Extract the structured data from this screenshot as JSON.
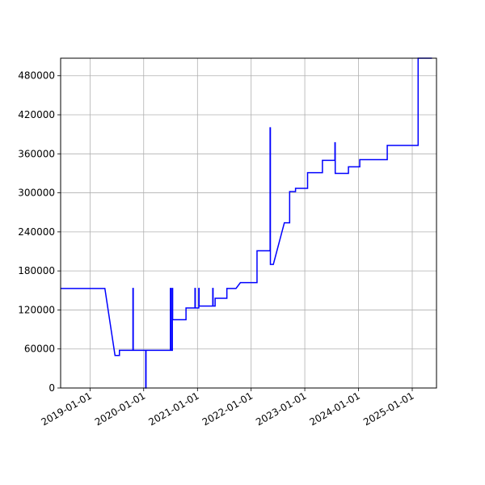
{
  "chart_data": {
    "type": "line",
    "title": "",
    "xlabel": "",
    "ylabel": "",
    "x_axis_kind": "date",
    "x_ticks": [
      "2019-01-01",
      "2020-01-01",
      "2021-01-01",
      "2022-01-01",
      "2023-01-01",
      "2024-01-01",
      "2025-01-01"
    ],
    "y_ticks": [
      "0",
      "60000",
      "120000",
      "180000",
      "240000",
      "300000",
      "360000",
      "420000",
      "480000"
    ],
    "xlim": [
      "2018-06-15",
      "2025-06-15"
    ],
    "ylim": [
      0,
      507000
    ],
    "grid": true,
    "legend": "none",
    "series": [
      {
        "color": "#0000ff",
        "x": [
          "2018-06-15",
          "2019-04-12",
          "2019-06-20",
          "2019-07-20",
          "2019-07-20",
          "2019-10-20",
          "2019-10-20",
          "2019-10-22",
          "2019-10-22",
          "2020-01-15",
          "2020-01-15",
          "2020-01-17",
          "2020-01-17",
          "2020-07-01",
          "2020-07-01",
          "2020-07-05",
          "2020-07-05",
          "2020-07-14",
          "2020-07-14",
          "2020-07-16",
          "2020-07-16",
          "2020-10-15",
          "2020-10-15",
          "2020-12-15",
          "2020-12-15",
          "2020-12-17",
          "2020-12-17",
          "2021-01-10",
          "2021-01-10",
          "2021-01-12",
          "2021-01-12",
          "2021-04-15",
          "2021-04-15",
          "2021-04-17",
          "2021-04-17",
          "2021-05-01",
          "2021-05-01",
          "2021-07-20",
          "2021-07-20",
          "2021-07-22",
          "2021-07-22",
          "2021-09-20",
          "2021-10-20",
          "2022-02-10",
          "2022-02-10",
          "2022-05-10",
          "2022-05-10",
          "2022-05-12",
          "2022-05-12",
          "2022-06-01",
          "2022-08-15",
          "2022-09-20",
          "2022-09-20",
          "2022-10-30",
          "2022-10-30",
          "2023-01-20",
          "2023-01-20",
          "2023-05-01",
          "2023-05-01",
          "2023-07-25",
          "2023-07-25",
          "2023-07-27",
          "2023-07-27",
          "2023-10-25",
          "2023-10-25",
          "2024-01-10",
          "2024-01-10",
          "2024-07-15",
          "2024-07-15",
          "2025-02-10",
          "2025-02-10",
          "2025-05-15"
        ],
        "y": [
          153000,
          153000,
          50000,
          50000,
          58000,
          58000,
          153000,
          153000,
          58000,
          58000,
          0,
          0,
          58000,
          58000,
          153000,
          153000,
          58000,
          58000,
          153000,
          153000,
          105000,
          105000,
          123000,
          123000,
          153000,
          153000,
          123000,
          123000,
          153000,
          153000,
          126000,
          126000,
          153000,
          153000,
          126000,
          126000,
          138000,
          138000,
          153000,
          153000,
          153000,
          153000,
          162000,
          162000,
          211000,
          211000,
          400000,
          400000,
          190000,
          190000,
          254000,
          254000,
          302000,
          302000,
          307000,
          307000,
          331000,
          331000,
          350000,
          350000,
          377000,
          377000,
          330000,
          330000,
          340000,
          340000,
          351000,
          351000,
          373000,
          373000,
          507000,
          507000
        ]
      }
    ]
  }
}
